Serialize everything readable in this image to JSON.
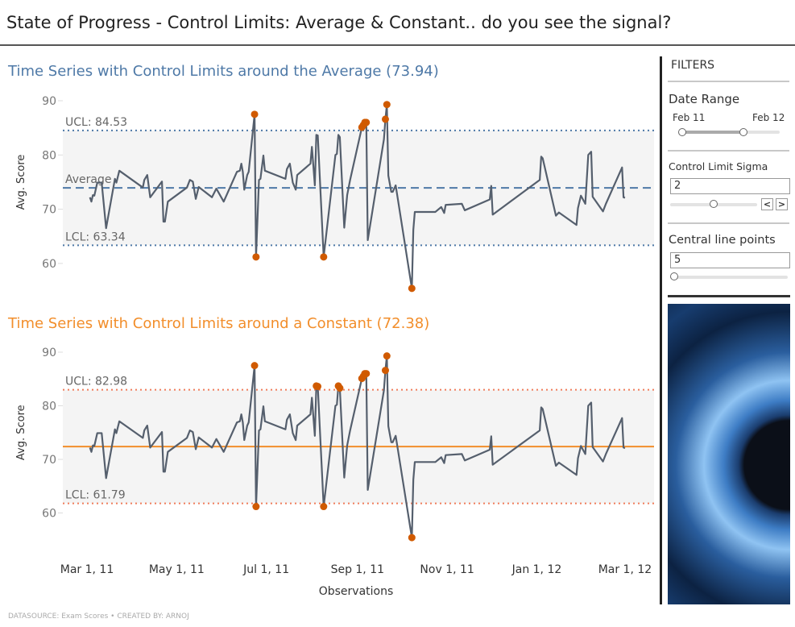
{
  "header": {
    "title": "State of Progress - Control Limits: Average & Constant.. do you see the signal?"
  },
  "colors": {
    "line": "#555f6d",
    "outlier": "#d05a00",
    "average": "#4e79a7",
    "constant": "#f28e2b",
    "constant_limits": "#f07c5a",
    "band": "#f4f4f4"
  },
  "chart_data": {
    "type": "line",
    "xlabel": "Observations",
    "ylabel": "Avg. Score",
    "x_ticks": [
      "Mar 1, 11",
      "May 1, 11",
      "Jul 1, 11",
      "Sep 1, 11",
      "Nov 1, 11",
      "Jan 1, 12",
      "Mar 1, 12"
    ],
    "x_tick_dates": [
      "2011-03-01",
      "2011-05-01",
      "2011-07-01",
      "2011-09-01",
      "2011-11-01",
      "2012-01-01",
      "2012-03-01"
    ],
    "y_ticks": [
      90,
      80,
      70,
      60
    ],
    "grid": false,
    "x": [
      "2011-03-03",
      "2011-03-04",
      "2011-03-05",
      "2011-03-06",
      "2011-03-08",
      "2011-03-11",
      "2011-03-14",
      "2011-03-20",
      "2011-03-21",
      "2011-03-23",
      "2011-04-08",
      "2011-04-09",
      "2011-04-11",
      "2011-04-13",
      "2011-04-21",
      "2011-04-22",
      "2011-04-23",
      "2011-04-25",
      "2011-05-08",
      "2011-05-10",
      "2011-05-12",
      "2011-05-14",
      "2011-05-16",
      "2011-05-25",
      "2011-05-28",
      "2011-06-02",
      "2011-06-11",
      "2011-06-13",
      "2011-06-14",
      "2011-06-15",
      "2011-06-16",
      "2011-06-18",
      "2011-06-19",
      "2011-06-23",
      "2011-06-24",
      "2011-06-26",
      "2011-06-27",
      "2011-06-29",
      "2011-06-30",
      "2011-07-14",
      "2011-07-15",
      "2011-07-17",
      "2011-07-19",
      "2011-07-21",
      "2011-07-22",
      "2011-07-31",
      "2011-08-01",
      "2011-08-03",
      "2011-08-04",
      "2011-08-05",
      "2011-08-09",
      "2011-08-17",
      "2011-08-18",
      "2011-08-19",
      "2011-08-20",
      "2011-08-23",
      "2011-08-25",
      "2011-08-27",
      "2011-09-04",
      "2011-09-05",
      "2011-09-06",
      "2011-09-07",
      "2011-09-08",
      "2011-09-19",
      "2011-09-20",
      "2011-09-21",
      "2011-09-22",
      "2011-09-24",
      "2011-09-25",
      "2011-09-27",
      "2011-10-08",
      "2011-10-09",
      "2011-10-10",
      "2011-10-24",
      "2011-10-28",
      "2011-10-30",
      "2011-10-31",
      "2011-11-11",
      "2011-11-13",
      "2011-11-30",
      "2011-12-01",
      "2011-12-02",
      "2012-01-03",
      "2012-01-04",
      "2012-01-05",
      "2012-01-14",
      "2012-01-16",
      "2012-01-28",
      "2012-01-29",
      "2012-01-31",
      "2012-02-03",
      "2012-02-05",
      "2012-02-07",
      "2012-02-08",
      "2012-02-15",
      "2012-02-17",
      "2012-02-28",
      "2012-02-29",
      "2012-03-01"
    ],
    "y": [
      72.2,
      71.4,
      72.6,
      72.5,
      74.9,
      74.9,
      66.5,
      75.6,
      74.9,
      77.1,
      74.0,
      75.4,
      76.3,
      72.2,
      75.1,
      67.7,
      67.7,
      71.4,
      74.0,
      75.4,
      75.1,
      71.9,
      74.1,
      72.2,
      73.8,
      71.4,
      76.9,
      77.1,
      78.4,
      76.9,
      73.6,
      76.3,
      76.9,
      87.5,
      61.2,
      75.4,
      75.6,
      79.9,
      77.1,
      75.6,
      77.4,
      78.4,
      74.9,
      73.6,
      76.3,
      78.4,
      81.5,
      74.4,
      83.7,
      83.6,
      61.2,
      80.0,
      80.2,
      83.7,
      83.3,
      66.6,
      72.6,
      75.4,
      85.1,
      85.5,
      86.0,
      86.0,
      64.3,
      82.9,
      86.6,
      89.3,
      76.2,
      73.2,
      73.2,
      74.4,
      55.4,
      66.2,
      69.5,
      69.5,
      70.4,
      69.3,
      70.8,
      71.0,
      69.8,
      71.8,
      74.3,
      69.0,
      75.4,
      79.7,
      79.4,
      68.8,
      69.4,
      67.1,
      70.2,
      72.5,
      71.0,
      80.0,
      80.6,
      72.3,
      69.6,
      71.0,
      77.7,
      72.2,
      72.1
    ],
    "ylim": [
      54,
      91
    ],
    "charts": [
      {
        "title": "Time Series with Control Limits around the Average (73.94)",
        "center": 73.94,
        "ucl": 84.53,
        "lcl": 63.34,
        "ucl_label": "UCL: 84.53",
        "lcl_label": "LCL: 63.34",
        "center_label": "Average",
        "center_style": "dashed"
      },
      {
        "title": "Time Series with Control Limits around a Constant  (72.38)",
        "center": 72.38,
        "ucl": 82.98,
        "lcl": 61.79,
        "ucl_label": "UCL: 82.98",
        "lcl_label": "LCL: 61.79",
        "center_label": "",
        "center_style": "solid"
      }
    ]
  },
  "filters": {
    "title": "FILTERS",
    "date_range": {
      "label": "Date Range",
      "start": "Feb 11",
      "end": "Feb 12"
    },
    "sigma": {
      "label": "Control Limit Sigma",
      "value": "2",
      "slider_fraction": 0.5,
      "prev": "<",
      "next": ">"
    },
    "central": {
      "label": "Central line points",
      "value": "5",
      "slider_fraction": 0
    }
  },
  "footer": {
    "text": "DATASOURCE: Exam Scores • CREATED BY: ARNOJ"
  }
}
